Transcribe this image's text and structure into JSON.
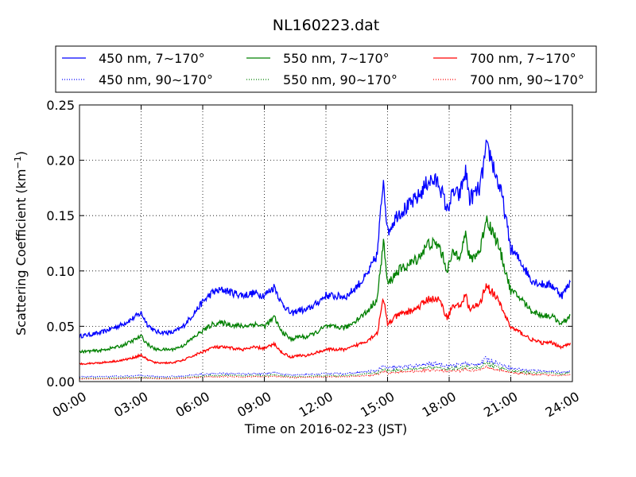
{
  "chart_data": {
    "type": "line",
    "title": "NL160223.dat",
    "xlabel": "Time on 2016-02-23 (JST)",
    "ylabel": "Scattering Coefficient (km",
    "ylabel_sup": "−1",
    "ylabel_close": ")",
    "xlim": [
      0,
      24
    ],
    "ylim": [
      0,
      0.25
    ],
    "grid": true,
    "legend_position": "top",
    "xticks": [
      0,
      3,
      6,
      9,
      12,
      15,
      18,
      21,
      24
    ],
    "xtick_labels": [
      "00:00",
      "03:00",
      "06:00",
      "09:00",
      "12:00",
      "15:00",
      "18:00",
      "21:00",
      "24:00"
    ],
    "yticks": [
      0,
      0.05,
      0.1,
      0.15,
      0.2,
      0.25
    ],
    "ytick_labels": [
      "0.00",
      "0.05",
      "0.10",
      "0.15",
      "0.20",
      "0.25"
    ],
    "x": [
      0,
      1,
      2,
      2.5,
      3,
      3.3,
      3.7,
      4.5,
      5.0,
      5.5,
      6.0,
      6.5,
      7.0,
      7.5,
      8.0,
      8.5,
      9.0,
      9.5,
      9.8,
      10.0,
      10.3,
      10.7,
      11.0,
      11.5,
      12.0,
      12.5,
      13.0,
      13.5,
      14.0,
      14.5,
      14.8,
      15.0,
      15.5,
      16.0,
      16.5,
      17.0,
      17.5,
      17.9,
      18.2,
      18.5,
      18.8,
      19.0,
      19.5,
      19.8,
      20.0,
      20.3,
      20.6,
      21.0,
      21.5,
      22.0,
      22.5,
      23.0,
      23.5,
      23.9
    ],
    "series": [
      {
        "name": "450 nm, 7∼170°",
        "color": "#0000ff",
        "style": "solid",
        "values": [
          0.041,
          0.044,
          0.051,
          0.056,
          0.062,
          0.052,
          0.045,
          0.044,
          0.049,
          0.06,
          0.072,
          0.081,
          0.083,
          0.08,
          0.078,
          0.08,
          0.078,
          0.086,
          0.072,
          0.068,
          0.061,
          0.065,
          0.064,
          0.07,
          0.078,
          0.077,
          0.077,
          0.086,
          0.096,
          0.115,
          0.185,
          0.135,
          0.152,
          0.158,
          0.167,
          0.182,
          0.18,
          0.155,
          0.171,
          0.168,
          0.19,
          0.165,
          0.175,
          0.21,
          0.205,
          0.185,
          0.165,
          0.12,
          0.108,
          0.092,
          0.088,
          0.087,
          0.078,
          0.09
        ]
      },
      {
        "name": "450 nm, 90∼170°",
        "color": "#0000ff",
        "style": "dotted",
        "values": [
          0.0045,
          0.0045,
          0.0048,
          0.005,
          0.0055,
          0.005,
          0.0046,
          0.0046,
          0.005,
          0.0058,
          0.0065,
          0.0072,
          0.0074,
          0.0072,
          0.007,
          0.0072,
          0.0072,
          0.0078,
          0.0068,
          0.0065,
          0.006,
          0.0062,
          0.0062,
          0.0066,
          0.0072,
          0.0072,
          0.0072,
          0.008,
          0.009,
          0.01,
          0.014,
          0.012,
          0.013,
          0.014,
          0.0145,
          0.016,
          0.016,
          0.014,
          0.015,
          0.015,
          0.017,
          0.015,
          0.016,
          0.021,
          0.019,
          0.017,
          0.015,
          0.012,
          0.011,
          0.01,
          0.0095,
          0.0092,
          0.0085,
          0.0095
        ]
      },
      {
        "name": "550 nm, 7∼170°",
        "color": "#008000",
        "style": "solid",
        "values": [
          0.027,
          0.028,
          0.032,
          0.036,
          0.041,
          0.034,
          0.029,
          0.029,
          0.032,
          0.039,
          0.046,
          0.052,
          0.053,
          0.051,
          0.05,
          0.052,
          0.05,
          0.058,
          0.046,
          0.043,
          0.038,
          0.041,
          0.04,
          0.044,
          0.05,
          0.049,
          0.049,
          0.056,
          0.063,
          0.075,
          0.127,
          0.088,
          0.1,
          0.105,
          0.112,
          0.125,
          0.123,
          0.101,
          0.116,
          0.115,
          0.132,
          0.11,
          0.118,
          0.148,
          0.14,
          0.128,
          0.11,
          0.082,
          0.075,
          0.064,
          0.06,
          0.059,
          0.052,
          0.06
        ]
      },
      {
        "name": "550 nm, 90∼170°",
        "color": "#008000",
        "style": "dotted",
        "values": [
          0.003,
          0.003,
          0.0033,
          0.0036,
          0.004,
          0.0036,
          0.0032,
          0.0032,
          0.0035,
          0.0042,
          0.0049,
          0.0055,
          0.0056,
          0.0054,
          0.0053,
          0.0055,
          0.0054,
          0.006,
          0.0051,
          0.0048,
          0.0044,
          0.0046,
          0.0046,
          0.0049,
          0.0054,
          0.0054,
          0.0054,
          0.006,
          0.0068,
          0.0078,
          0.011,
          0.0095,
          0.0105,
          0.011,
          0.0115,
          0.0128,
          0.0127,
          0.011,
          0.012,
          0.012,
          0.0135,
          0.012,
          0.0128,
          0.0165,
          0.015,
          0.0135,
          0.012,
          0.0095,
          0.0088,
          0.008,
          0.0076,
          0.0074,
          0.0068,
          0.0076
        ]
      },
      {
        "name": "700 nm, 7∼170°",
        "color": "#ff0000",
        "style": "solid",
        "values": [
          0.016,
          0.017,
          0.019,
          0.021,
          0.024,
          0.02,
          0.017,
          0.017,
          0.019,
          0.023,
          0.027,
          0.031,
          0.031,
          0.03,
          0.029,
          0.031,
          0.03,
          0.034,
          0.027,
          0.025,
          0.022,
          0.024,
          0.023,
          0.026,
          0.029,
          0.029,
          0.029,
          0.033,
          0.037,
          0.044,
          0.075,
          0.052,
          0.06,
          0.063,
          0.067,
          0.075,
          0.074,
          0.058,
          0.069,
          0.068,
          0.078,
          0.065,
          0.07,
          0.088,
          0.083,
          0.076,
          0.065,
          0.049,
          0.044,
          0.038,
          0.035,
          0.035,
          0.031,
          0.035
        ]
      },
      {
        "name": "700 nm, 90∼170°",
        "color": "#ff0000",
        "style": "dotted",
        "values": [
          0.0025,
          0.0025,
          0.0027,
          0.003,
          0.0033,
          0.003,
          0.0027,
          0.0027,
          0.0029,
          0.0035,
          0.004,
          0.0045,
          0.0046,
          0.0044,
          0.0043,
          0.0045,
          0.0044,
          0.0049,
          0.0042,
          0.004,
          0.0036,
          0.0038,
          0.0038,
          0.004,
          0.0044,
          0.0044,
          0.0044,
          0.0049,
          0.0056,
          0.0064,
          0.009,
          0.0078,
          0.0086,
          0.009,
          0.0094,
          0.0105,
          0.0104,
          0.009,
          0.0098,
          0.0098,
          0.011,
          0.0098,
          0.0105,
          0.0135,
          0.0123,
          0.011,
          0.0098,
          0.0078,
          0.0072,
          0.0066,
          0.0062,
          0.006,
          0.0056,
          0.0062
        ]
      }
    ]
  }
}
